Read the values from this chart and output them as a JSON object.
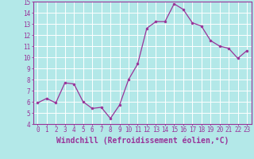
{
  "x": [
    0,
    1,
    2,
    3,
    4,
    5,
    6,
    7,
    8,
    9,
    10,
    11,
    12,
    13,
    14,
    15,
    16,
    17,
    18,
    19,
    20,
    21,
    22,
    23
  ],
  "y": [
    5.9,
    6.3,
    5.9,
    7.7,
    7.6,
    6.0,
    5.4,
    5.5,
    4.5,
    5.7,
    8.0,
    9.4,
    12.6,
    13.2,
    13.2,
    14.8,
    14.3,
    13.1,
    12.8,
    11.5,
    11.0,
    10.8,
    9.9,
    10.6
  ],
  "line_color": "#993399",
  "marker_color": "#993399",
  "bg_color": "#b3e8e8",
  "grid_color": "#ffffff",
  "xlabel": "Windchill (Refroidissement éolien,°C)",
  "ylabel": "",
  "xlim": [
    -0.5,
    23.5
  ],
  "ylim": [
    4,
    15
  ],
  "yticks": [
    4,
    5,
    6,
    7,
    8,
    9,
    10,
    11,
    12,
    13,
    14,
    15
  ],
  "xticks": [
    0,
    1,
    2,
    3,
    4,
    5,
    6,
    7,
    8,
    9,
    10,
    11,
    12,
    13,
    14,
    15,
    16,
    17,
    18,
    19,
    20,
    21,
    22,
    23
  ],
  "tick_label_size": 5.5,
  "xlabel_size": 7.0,
  "spine_color": "#993399",
  "bg_figure_color": "#b3e8e8"
}
